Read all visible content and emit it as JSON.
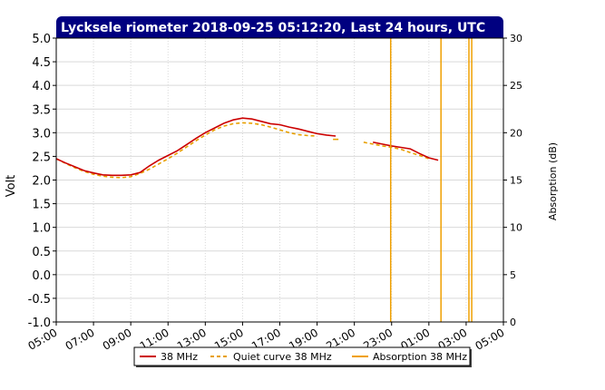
{
  "chart_data": {
    "type": "line",
    "title": "Lycksele riometer 2018-09-25 05:12:20, Last 24 hours, UTC",
    "ylabel": "Volt",
    "y2label": "Absorption (dB)",
    "xlabel": "",
    "ylim": [
      -1.0,
      5.0
    ],
    "y2lim": [
      0,
      30
    ],
    "x_ticks": [
      "05:00",
      "07:00",
      "09:00",
      "11:00",
      "13:00",
      "15:00",
      "17:00",
      "19:00",
      "21:00",
      "23:00",
      "01:00",
      "03:00",
      "05:00"
    ],
    "y_ticks": [
      "5.0",
      "4.5",
      "4.0",
      "3.5",
      "3.0",
      "2.5",
      "2.0",
      "1.5",
      "1.0",
      "0.5",
      "0.0",
      "-0.5",
      "-1.0"
    ],
    "y2_ticks": [
      "30",
      "25",
      "20",
      "15",
      "10",
      "5",
      "0"
    ],
    "grid": true,
    "legend_position": "bottom",
    "colors": {
      "title_bg": "#000080",
      "signal": "#cc0000",
      "quiet": "#e8a000",
      "absorption": "#f0a000",
      "grid": "#d9d9d9"
    },
    "series": [
      {
        "name": "38 MHz",
        "x": [
          0,
          0.5,
          1,
          1.5,
          2,
          2.5,
          3,
          3.5,
          4,
          4.5,
          5,
          5.5,
          6,
          6.5,
          7,
          7.5,
          8,
          8.5,
          9,
          9.5,
          10,
          10.5,
          11,
          11.5,
          12,
          12.5,
          13,
          13.5,
          14,
          14.5,
          15,
          15.5,
          16.5,
          17,
          17.5,
          18,
          18.5,
          19,
          19.5,
          20,
          20.5,
          21,
          21.5,
          22,
          22.5,
          23,
          23.5,
          24
        ],
        "y": [
          2.45,
          2.36,
          2.28,
          2.2,
          2.15,
          2.11,
          2.1,
          2.1,
          2.11,
          2.16,
          2.3,
          2.42,
          2.52,
          2.62,
          2.75,
          2.88,
          3.0,
          3.1,
          3.2,
          3.27,
          3.31,
          3.29,
          3.24,
          3.19,
          3.17,
          3.12,
          3.08,
          3.03,
          2.98,
          2.95,
          2.93,
          null,
          null,
          2.8,
          2.76,
          2.72,
          2.69,
          2.66,
          2.56,
          2.47,
          2.42,
          null,
          null,
          null,
          null,
          null,
          null,
          null
        ]
      },
      {
        "name": "Quiet curve 38 MHz",
        "x": [
          0,
          0.5,
          1,
          1.5,
          2,
          2.5,
          3,
          3.5,
          4,
          4.5,
          5,
          5.5,
          6,
          6.5,
          7,
          7.5,
          8,
          8.5,
          9,
          9.5,
          10,
          10.5,
          11,
          11.5,
          12,
          12.5,
          13,
          13.5,
          14,
          14.5,
          15,
          15.5,
          16,
          16.5,
          17,
          17.5,
          18,
          18.5,
          19,
          19.5,
          20,
          20.5
        ],
        "y": [
          2.45,
          2.35,
          2.26,
          2.18,
          2.12,
          2.08,
          2.06,
          2.05,
          2.07,
          2.14,
          2.23,
          2.34,
          2.45,
          2.57,
          2.7,
          2.83,
          2.95,
          3.06,
          3.14,
          3.19,
          3.21,
          3.2,
          3.17,
          3.12,
          3.06,
          3.0,
          2.96,
          2.94,
          2.93,
          null,
          2.86,
          null,
          null,
          2.8,
          2.76,
          2.72,
          2.69,
          2.65,
          2.58,
          2.52,
          2.45,
          null
        ]
      },
      {
        "name": "Absorption 38 MHz",
        "spikes": [
          {
            "x": 17.95,
            "y": 30.5
          },
          {
            "x": 20.65,
            "y": 30.5
          },
          {
            "x": 22.15,
            "y": 30.3
          },
          {
            "x": 22.3,
            "y": 30.3
          }
        ]
      }
    ]
  }
}
